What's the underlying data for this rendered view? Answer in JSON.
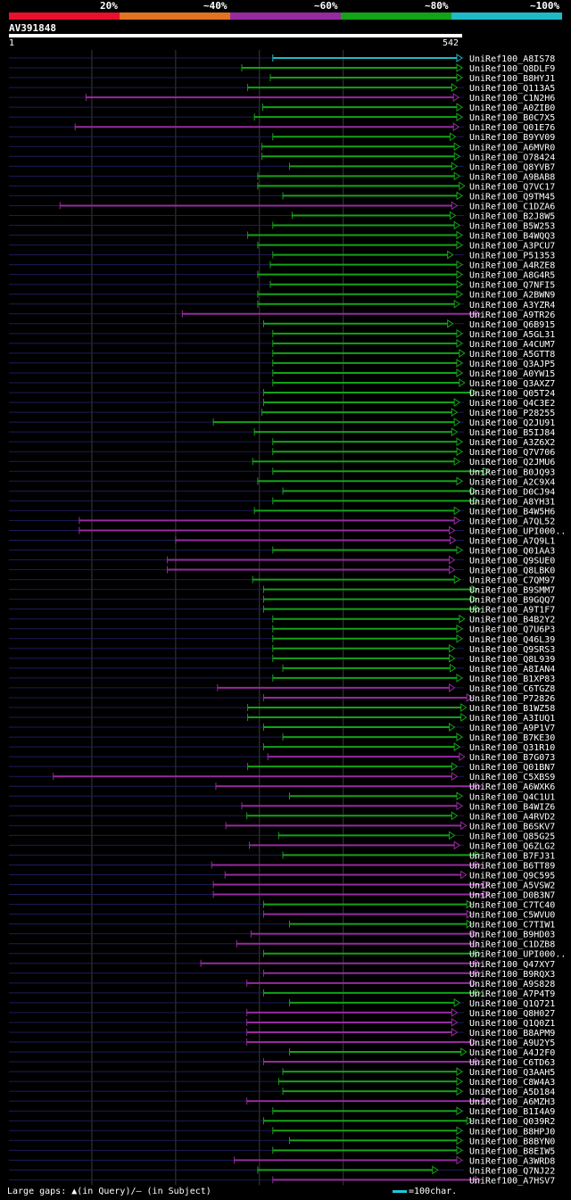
{
  "header": {
    "title": "AV391848",
    "query_start": "1",
    "query_end": "542"
  },
  "footer": {
    "gaps_label": "Large gaps: ▲(in Query)/— (in Subject)",
    "scale_label": "=100char."
  },
  "colors": {
    "p20": "#e8102c",
    "p40": "#e27322",
    "p60": "#962aa0",
    "p80": "#13a218",
    "p100": "#1fb9c8",
    "grid": "#3a3a3a",
    "axis": "#1c1c5a"
  },
  "chart_data": {
    "type": "alignment",
    "title": "AV391848",
    "query_range": [
      1,
      542
    ],
    "legend": [
      {
        "label": "20%",
        "color": "#e8102c"
      },
      {
        "label": "~40%",
        "color": "#e27322"
      },
      {
        "label": "~60%",
        "color": "#962aa0"
      },
      {
        "label": "~80%",
        "color": "#13a218"
      },
      {
        "label": "~100%",
        "color": "#1fb9c8"
      }
    ],
    "hits": [
      {
        "name": "UniRef100_A8IS78",
        "qs": 316,
        "qe": 542,
        "cat": 5
      },
      {
        "name": "UniRef100_Q8DLF9",
        "qs": 279,
        "qe": 542,
        "cat": 4
      },
      {
        "name": "UniRef100_B8HYJ1",
        "qs": 313,
        "qe": 542,
        "cat": 4
      },
      {
        "name": "UniRef100_Q113A5",
        "qs": 286,
        "qe": 536,
        "cat": 4
      },
      {
        "name": "UniRef100_C1N2H6",
        "qs": 93,
        "qe": 538,
        "cat": 3
      },
      {
        "name": "UniRef100_A0ZIB0",
        "qs": 304,
        "qe": 542,
        "cat": 4
      },
      {
        "name": "UniRef100_B0C7X5",
        "qs": 294,
        "qe": 542,
        "cat": 4
      },
      {
        "name": "UniRef100_Q01E76",
        "qs": 80,
        "qe": 538,
        "cat": 3
      },
      {
        "name": "UniRef100_B9YV09",
        "qs": 316,
        "qe": 534,
        "cat": 4
      },
      {
        "name": "UniRef100_A6MVR0",
        "qs": 303,
        "qe": 539,
        "cat": 4
      },
      {
        "name": "UniRef100_O78424",
        "qs": 303,
        "qe": 539,
        "cat": 4
      },
      {
        "name": "UniRef100_Q8YVB7",
        "qs": 336,
        "qe": 536,
        "cat": 4
      },
      {
        "name": "UniRef100_A9BAB8",
        "qs": 298,
        "qe": 539,
        "cat": 4
      },
      {
        "name": "UniRef100_Q7VC17",
        "qs": 298,
        "qe": 545,
        "cat": 4
      },
      {
        "name": "UniRef100_Q9TM45",
        "qs": 328,
        "qe": 542,
        "cat": 4
      },
      {
        "name": "UniRef100_C1DZA6",
        "qs": 62,
        "qe": 536,
        "cat": 3
      },
      {
        "name": "UniRef100_B2J8W5",
        "qs": 339,
        "qe": 534,
        "cat": 4
      },
      {
        "name": "UniRef100_B5W253",
        "qs": 316,
        "qe": 539,
        "cat": 4
      },
      {
        "name": "UniRef100_B4WQQ3",
        "qs": 286,
        "qe": 542,
        "cat": 4
      },
      {
        "name": "UniRef100_A3PCU7",
        "qs": 298,
        "qe": 542,
        "cat": 4
      },
      {
        "name": "UniRef100_P51353",
        "qs": 316,
        "qe": 531,
        "cat": 4
      },
      {
        "name": "UniRef100_A4RZE8",
        "qs": 313,
        "qe": 542,
        "cat": 4
      },
      {
        "name": "UniRef100_A8G4R5",
        "qs": 298,
        "qe": 542,
        "cat": 4
      },
      {
        "name": "UniRef100_Q7NFI5",
        "qs": 313,
        "qe": 542,
        "cat": 4
      },
      {
        "name": "UniRef100_A2BWN9",
        "qs": 298,
        "qe": 542,
        "cat": 4
      },
      {
        "name": "UniRef100_A3YZR4",
        "qs": 298,
        "qe": 539,
        "cat": 4
      },
      {
        "name": "UniRef100_A9TR26",
        "qs": 208,
        "qe": 564,
        "cat": 3
      },
      {
        "name": "UniRef100_Q6B915",
        "qs": 305,
        "qe": 531,
        "cat": 4
      },
      {
        "name": "UniRef100_A5GL31",
        "qs": 316,
        "qe": 542,
        "cat": 4
      },
      {
        "name": "UniRef100_A4CUM7",
        "qs": 316,
        "qe": 542,
        "cat": 4
      },
      {
        "name": "UniRef100_A5GTT8",
        "qs": 316,
        "qe": 545,
        "cat": 4
      },
      {
        "name": "UniRef100_Q3AJP5",
        "qs": 316,
        "qe": 542,
        "cat": 4
      },
      {
        "name": "UniRef100_A0YW15",
        "qs": 316,
        "qe": 542,
        "cat": 4
      },
      {
        "name": "UniRef100_Q3AXZ7",
        "qs": 316,
        "qe": 545,
        "cat": 4
      },
      {
        "name": "UniRef100_Q05T24",
        "qs": 305,
        "qe": 559,
        "cat": 4
      },
      {
        "name": "UniRef100_Q4C3E2",
        "qs": 305,
        "qe": 539,
        "cat": 4
      },
      {
        "name": "UniRef100_P28255",
        "qs": 303,
        "qe": 536,
        "cat": 4
      },
      {
        "name": "UniRef100_Q2JU91",
        "qs": 245,
        "qe": 539,
        "cat": 4
      },
      {
        "name": "UniRef100_B5IJ84",
        "qs": 294,
        "qe": 536,
        "cat": 4
      },
      {
        "name": "UniRef100_A3Z6X2",
        "qs": 316,
        "qe": 542,
        "cat": 4
      },
      {
        "name": "UniRef100_Q7V706",
        "qs": 316,
        "qe": 542,
        "cat": 4
      },
      {
        "name": "UniRef100_Q2JMU6",
        "qs": 292,
        "qe": 539,
        "cat": 4
      },
      {
        "name": "UniRef100_B0JQ93",
        "qs": 316,
        "qe": 574,
        "cat": 4
      },
      {
        "name": "UniRef100_A2C9X4",
        "qs": 298,
        "qe": 542,
        "cat": 4
      },
      {
        "name": "UniRef100_D0CJ94",
        "qs": 328,
        "qe": 559,
        "cat": 4
      },
      {
        "name": "UniRef100_A8YH31",
        "qs": 316,
        "qe": 562,
        "cat": 4
      },
      {
        "name": "UniRef100_B4W5H6",
        "qs": 294,
        "qe": 539,
        "cat": 4
      },
      {
        "name": "UniRef100_A7QL52",
        "qs": 85,
        "qe": 539,
        "cat": 3
      },
      {
        "name": "UniRef100_UPI000..",
        "qs": 85,
        "qe": 533,
        "cat": 3
      },
      {
        "name": "UniRef100_A7Q9L1",
        "qs": 200,
        "qe": 534,
        "cat": 3
      },
      {
        "name": "UniRef100_Q01AA3",
        "qs": 316,
        "qe": 542,
        "cat": 4
      },
      {
        "name": "UniRef100_Q9SUE0",
        "qs": 190,
        "qe": 533,
        "cat": 3
      },
      {
        "name": "UniRef100_Q8LBK0",
        "qs": 190,
        "qe": 533,
        "cat": 3
      },
      {
        "name": "UniRef100_C7QM97",
        "qs": 292,
        "qe": 539,
        "cat": 4
      },
      {
        "name": "UniRef100_B9SMM7",
        "qs": 305,
        "qe": 560,
        "cat": 4
      },
      {
        "name": "UniRef100_B9GQQ7",
        "qs": 305,
        "qe": 559,
        "cat": 4
      },
      {
        "name": "UniRef100_A9T1F7",
        "qs": 305,
        "qe": 564,
        "cat": 4
      },
      {
        "name": "UniRef100_B4B2Y2",
        "qs": 316,
        "qe": 545,
        "cat": 4
      },
      {
        "name": "UniRef100_Q7U6P3",
        "qs": 316,
        "qe": 542,
        "cat": 4
      },
      {
        "name": "UniRef100_Q46L39",
        "qs": 316,
        "qe": 542,
        "cat": 4
      },
      {
        "name": "UniRef100_Q9SRS3",
        "qs": 316,
        "qe": 533,
        "cat": 4
      },
      {
        "name": "UniRef100_Q8L939",
        "qs": 316,
        "qe": 533,
        "cat": 4
      },
      {
        "name": "UniRef100_A8IAN4",
        "qs": 328,
        "qe": 534,
        "cat": 4
      },
      {
        "name": "UniRef100_B1XP83",
        "qs": 316,
        "qe": 542,
        "cat": 4
      },
      {
        "name": "UniRef100_C6TGZ8",
        "qs": 250,
        "qe": 533,
        "cat": 3
      },
      {
        "name": "UniRef100_P72826",
        "qs": 305,
        "qe": 554,
        "cat": 3
      },
      {
        "name": "UniRef100_B1WZ58",
        "qs": 286,
        "qe": 547,
        "cat": 4
      },
      {
        "name": "UniRef100_A3IUQ1",
        "qs": 286,
        "qe": 547,
        "cat": 4
      },
      {
        "name": "UniRef100_A9P1V7",
        "qs": 305,
        "qe": 533,
        "cat": 4
      },
      {
        "name": "UniRef100_B7KE30",
        "qs": 328,
        "qe": 542,
        "cat": 4
      },
      {
        "name": "UniRef100_Q31R10",
        "qs": 305,
        "qe": 539,
        "cat": 4
      },
      {
        "name": "UniRef100_B7G073",
        "qs": 310,
        "qe": 545,
        "cat": 3
      },
      {
        "name": "UniRef100_Q01BN7",
        "qs": 286,
        "qe": 536,
        "cat": 4
      },
      {
        "name": "UniRef100_C5XBS9",
        "qs": 54,
        "qe": 536,
        "cat": 3
      },
      {
        "name": "UniRef100_A6WXK6",
        "qs": 248,
        "qe": 564,
        "cat": 3
      },
      {
        "name": "UniRef100_Q4C1U1",
        "qs": 336,
        "qe": 542,
        "cat": 4
      },
      {
        "name": "UniRef100_B4WIZ6",
        "qs": 279,
        "qe": 542,
        "cat": 3
      },
      {
        "name": "UniRef100_A4RVD2",
        "qs": 285,
        "qe": 536,
        "cat": 4
      },
      {
        "name": "UniRef100_B6SKV7",
        "qs": 260,
        "qe": 547,
        "cat": 3
      },
      {
        "name": "UniRef100_Q85G25",
        "qs": 323,
        "qe": 533,
        "cat": 4
      },
      {
        "name": "UniRef100_Q6ZLG2",
        "qs": 288,
        "qe": 539,
        "cat": 3
      },
      {
        "name": "UniRef100_B7FJ31",
        "qs": 328,
        "qe": 564,
        "cat": 4
      },
      {
        "name": "UniRef100_B6TT89",
        "qs": 243,
        "qe": 564,
        "cat": 3
      },
      {
        "name": "UniRef100_Q9C595",
        "qs": 259,
        "qe": 547,
        "cat": 3
      },
      {
        "name": "UniRef100_A5VSW2",
        "qs": 245,
        "qe": 574,
        "cat": 3
      },
      {
        "name": "UniRef100_D0B3N7",
        "qs": 245,
        "qe": 574,
        "cat": 3
      },
      {
        "name": "UniRef100_C7TC40",
        "qs": 305,
        "qe": 554,
        "cat": 4
      },
      {
        "name": "UniRef100_C5WVU0",
        "qs": 305,
        "qe": 554,
        "cat": 3
      },
      {
        "name": "UniRef100_C7TIW1",
        "qs": 336,
        "qe": 554,
        "cat": 4
      },
      {
        "name": "UniRef100_B9HD03",
        "qs": 290,
        "qe": 560,
        "cat": 3
      },
      {
        "name": "UniRef100_C1DZB8",
        "qs": 273,
        "qe": 562,
        "cat": 3
      },
      {
        "name": "UniRef100_UPI000..",
        "qs": 305,
        "qe": 564,
        "cat": 4
      },
      {
        "name": "UniRef100_Q47XY7",
        "qs": 230,
        "qe": 564,
        "cat": 3
      },
      {
        "name": "UniRef100_B9RQX3",
        "qs": 305,
        "qe": 564,
        "cat": 3
      },
      {
        "name": "UniRef100_A9S828",
        "qs": 285,
        "qe": 559,
        "cat": 3
      },
      {
        "name": "UniRef100_A7P4T9",
        "qs": 305,
        "qe": 564,
        "cat": 4
      },
      {
        "name": "UniRef100_Q1Q721",
        "qs": 336,
        "qe": 539,
        "cat": 4
      },
      {
        "name": "UniRef100_Q8H027",
        "qs": 285,
        "qe": 536,
        "cat": 3
      },
      {
        "name": "UniRef100_Q1Q0Z1",
        "qs": 285,
        "qe": 536,
        "cat": 3
      },
      {
        "name": "UniRef100_B8APM9",
        "qs": 285,
        "qe": 536,
        "cat": 3
      },
      {
        "name": "UniRef100_A9U2Y5",
        "qs": 285,
        "qe": 559,
        "cat": 3
      },
      {
        "name": "UniRef100_A4J2F0",
        "qs": 336,
        "qe": 547,
        "cat": 4
      },
      {
        "name": "UniRef100_C6TD63",
        "qs": 305,
        "qe": 564,
        "cat": 3
      },
      {
        "name": "UniRef100_Q3AAH5",
        "qs": 328,
        "qe": 542,
        "cat": 4
      },
      {
        "name": "UniRef100_C8W4A3",
        "qs": 323,
        "qe": 542,
        "cat": 4
      },
      {
        "name": "UniRef100_A5D184",
        "qs": 328,
        "qe": 542,
        "cat": 4
      },
      {
        "name": "UniRef100_A6MZH3",
        "qs": 285,
        "qe": 574,
        "cat": 3
      },
      {
        "name": "UniRef100_B1I4A9",
        "qs": 316,
        "qe": 542,
        "cat": 4
      },
      {
        "name": "UniRef100_Q039R2",
        "qs": 305,
        "qe": 554,
        "cat": 4
      },
      {
        "name": "UniRef100_B8HPJ0",
        "qs": 316,
        "qe": 542,
        "cat": 4
      },
      {
        "name": "UniRef100_B8BYN0",
        "qs": 336,
        "qe": 542,
        "cat": 4
      },
      {
        "name": "UniRef100_B8EIW5",
        "qs": 316,
        "qe": 542,
        "cat": 4
      },
      {
        "name": "UniRef100_A3WRD8",
        "qs": 270,
        "qe": 542,
        "cat": 3
      },
      {
        "name": "UniRef100_Q7NJ22",
        "qs": 298,
        "qe": 513,
        "cat": 4
      },
      {
        "name": "UniRef100_A7HSV7",
        "qs": 316,
        "qe": 564,
        "cat": 3
      }
    ]
  }
}
